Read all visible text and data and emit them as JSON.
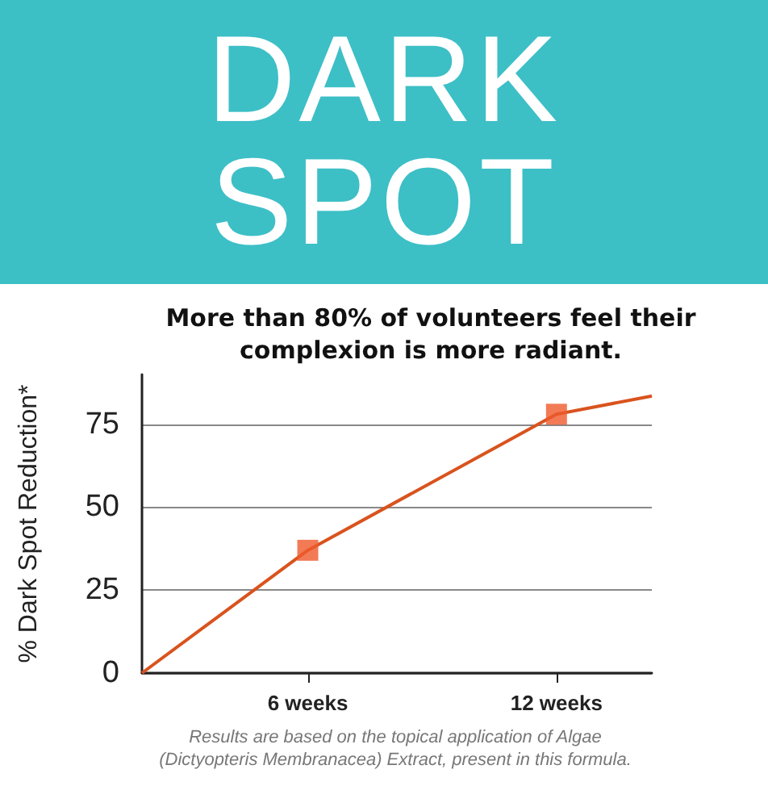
{
  "chart_data": {
    "type": "line",
    "title": "DARK SPOT",
    "subtitle": "More than 80% of volunteers feel their\ncomplexion is more radiant.",
    "ylabel": "% Dark Spot Reduction*",
    "annotations": [
      "Results are based on the topical application of Algae\n(Dictyopteris Membranacea) Extract, present in this formula."
    ],
    "series": [
      {
        "color": "#d9531e",
        "x": [
          2,
          6,
          12,
          14.3
        ],
        "values": [
          0,
          37,
          78,
          83.5
        ],
        "marker": "none"
      },
      {
        "type": "scatter",
        "color": "#ef5a2c",
        "x": [
          6,
          12
        ],
        "values": [
          37,
          78
        ],
        "marker": "square"
      }
    ],
    "xlim": [
      2,
      14.3
    ],
    "xticks": [
      {
        "value": 6,
        "label": "6 weeks"
      },
      {
        "value": 12,
        "label": "12 weeks"
      }
    ],
    "ylim": [
      0,
      90
    ],
    "yticks": [
      0,
      25,
      50,
      75
    ],
    "grid": "y"
  }
}
